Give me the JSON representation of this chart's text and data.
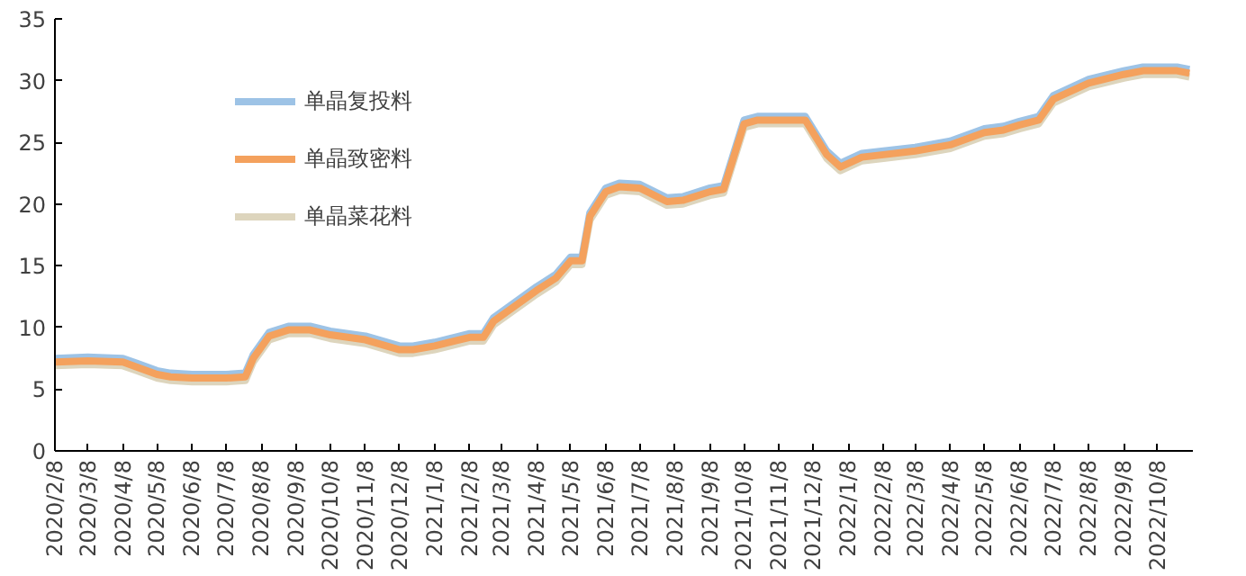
{
  "chart_data": {
    "type": "line",
    "x": [
      "2020-02-08",
      "2020-03-08",
      "2020-04-08",
      "2020-04-20",
      "2020-05-08",
      "2020-05-20",
      "2020-06-08",
      "2020-07-08",
      "2020-07-25",
      "2020-08-01",
      "2020-08-15",
      "2020-09-01",
      "2020-09-20",
      "2020-10-08",
      "2020-11-08",
      "2020-12-08",
      "2020-12-20",
      "2021-01-08",
      "2021-02-08",
      "2021-02-20",
      "2021-03-01",
      "2021-04-08",
      "2021-04-25",
      "2021-05-08",
      "2021-05-18",
      "2021-05-25",
      "2021-06-08",
      "2021-06-20",
      "2021-07-08",
      "2021-08-01",
      "2021-08-15",
      "2021-09-08",
      "2021-09-20",
      "2021-10-08",
      "2021-10-20",
      "2021-12-01",
      "2021-12-20",
      "2022-01-01",
      "2022-01-20",
      "2022-02-08",
      "2022-03-08",
      "2022-04-08",
      "2022-05-08",
      "2022-05-25",
      "2022-06-08",
      "2022-06-25",
      "2022-07-08",
      "2022-08-08",
      "2022-09-08",
      "2022-09-25",
      "2022-10-25",
      "2022-11-05"
    ],
    "series": [
      {
        "name": "单晶复投料",
        "color": "#9dc3e6",
        "values": [
          7.5,
          7.6,
          7.5,
          7.1,
          6.5,
          6.3,
          6.2,
          6.2,
          6.3,
          7.8,
          9.6,
          10.1,
          10.1,
          9.7,
          9.3,
          8.5,
          8.5,
          8.8,
          9.5,
          9.5,
          10.8,
          13.3,
          14.3,
          15.7,
          15.7,
          19.3,
          21.3,
          21.7,
          21.6,
          20.5,
          20.6,
          21.3,
          21.5,
          26.8,
          27.1,
          27.1,
          24.3,
          23.3,
          24.1,
          24.3,
          24.6,
          25.1,
          26.1,
          26.3,
          26.7,
          27.1,
          28.8,
          30.1,
          30.8,
          31.1,
          31.1,
          30.9
        ]
      },
      {
        "name": "单晶致密料",
        "color": "#f4a15d",
        "values": [
          7.2,
          7.3,
          7.2,
          6.8,
          6.2,
          6.0,
          5.9,
          5.9,
          6.0,
          7.5,
          9.3,
          9.8,
          9.8,
          9.4,
          9.0,
          8.2,
          8.2,
          8.5,
          9.2,
          9.2,
          10.5,
          13.0,
          14.0,
          15.4,
          15.4,
          19.0,
          21.0,
          21.4,
          21.3,
          20.2,
          20.3,
          21.0,
          21.2,
          26.5,
          26.8,
          26.8,
          24.0,
          23.0,
          23.8,
          24.0,
          24.3,
          24.8,
          25.8,
          26.0,
          26.4,
          26.8,
          28.5,
          29.8,
          30.5,
          30.8,
          30.8,
          30.6
        ]
      },
      {
        "name": "单晶菜花料",
        "color": "#ddd5bd",
        "values": [
          6.9,
          7.0,
          6.9,
          6.5,
          5.9,
          5.7,
          5.6,
          5.6,
          5.7,
          7.2,
          9.0,
          9.5,
          9.5,
          9.1,
          8.7,
          7.9,
          7.9,
          8.2,
          8.9,
          8.9,
          10.2,
          12.7,
          13.7,
          15.1,
          15.1,
          18.7,
          20.7,
          21.1,
          21.0,
          19.9,
          20.0,
          20.7,
          20.9,
          26.2,
          26.5,
          26.5,
          23.7,
          22.7,
          23.5,
          23.7,
          24.0,
          24.5,
          25.5,
          25.7,
          26.1,
          26.5,
          28.2,
          29.5,
          30.2,
          30.5,
          30.5,
          30.3
        ]
      }
    ],
    "xlim": [
      "2020-02-08",
      "2022-11-08"
    ],
    "xticks": [
      {
        "value": "2020-02-08",
        "label": "2020/2/8"
      },
      {
        "value": "2020-03-08",
        "label": "2020/3/8"
      },
      {
        "value": "2020-04-08",
        "label": "2020/4/8"
      },
      {
        "value": "2020-05-08",
        "label": "2020/5/8"
      },
      {
        "value": "2020-06-08",
        "label": "2020/6/8"
      },
      {
        "value": "2020-07-08",
        "label": "2020/7/8"
      },
      {
        "value": "2020-08-08",
        "label": "2020/8/8"
      },
      {
        "value": "2020-09-08",
        "label": "2020/9/8"
      },
      {
        "value": "2020-10-08",
        "label": "2020/10/8"
      },
      {
        "value": "2020-11-08",
        "label": "2020/11/8"
      },
      {
        "value": "2020-12-08",
        "label": "2020/12/8"
      },
      {
        "value": "2021-01-08",
        "label": "2021/1/8"
      },
      {
        "value": "2021-02-08",
        "label": "2021/2/8"
      },
      {
        "value": "2021-03-08",
        "label": "2021/3/8"
      },
      {
        "value": "2021-04-08",
        "label": "2021/4/8"
      },
      {
        "value": "2021-05-08",
        "label": "2021/5/8"
      },
      {
        "value": "2021-06-08",
        "label": "2021/6/8"
      },
      {
        "value": "2021-07-08",
        "label": "2021/7/8"
      },
      {
        "value": "2021-08-08",
        "label": "2021/8/8"
      },
      {
        "value": "2021-09-08",
        "label": "2021/9/8"
      },
      {
        "value": "2021-10-08",
        "label": "2021/10/8"
      },
      {
        "value": "2021-11-08",
        "label": "2021/11/8"
      },
      {
        "value": "2021-12-08",
        "label": "2021/12/8"
      },
      {
        "value": "2022-01-08",
        "label": "2022/1/8"
      },
      {
        "value": "2022-02-08",
        "label": "2022/2/8"
      },
      {
        "value": "2022-03-08",
        "label": "2022/3/8"
      },
      {
        "value": "2022-04-08",
        "label": "2022/4/8"
      },
      {
        "value": "2022-05-08",
        "label": "2022/5/8"
      },
      {
        "value": "2022-06-08",
        "label": "2022/6/8"
      },
      {
        "value": "2022-07-08",
        "label": "2022/7/8"
      },
      {
        "value": "2022-08-08",
        "label": "2022/8/8"
      },
      {
        "value": "2022-09-08",
        "label": "2022/9/8"
      },
      {
        "value": "2022-10-08",
        "label": "2022/10/8"
      }
    ],
    "ylim": [
      0,
      35
    ],
    "yticks": [
      0,
      5,
      10,
      15,
      20,
      25,
      30,
      35
    ],
    "grid": false,
    "legend": "top left",
    "marker": "none",
    "line_style": "solid"
  }
}
